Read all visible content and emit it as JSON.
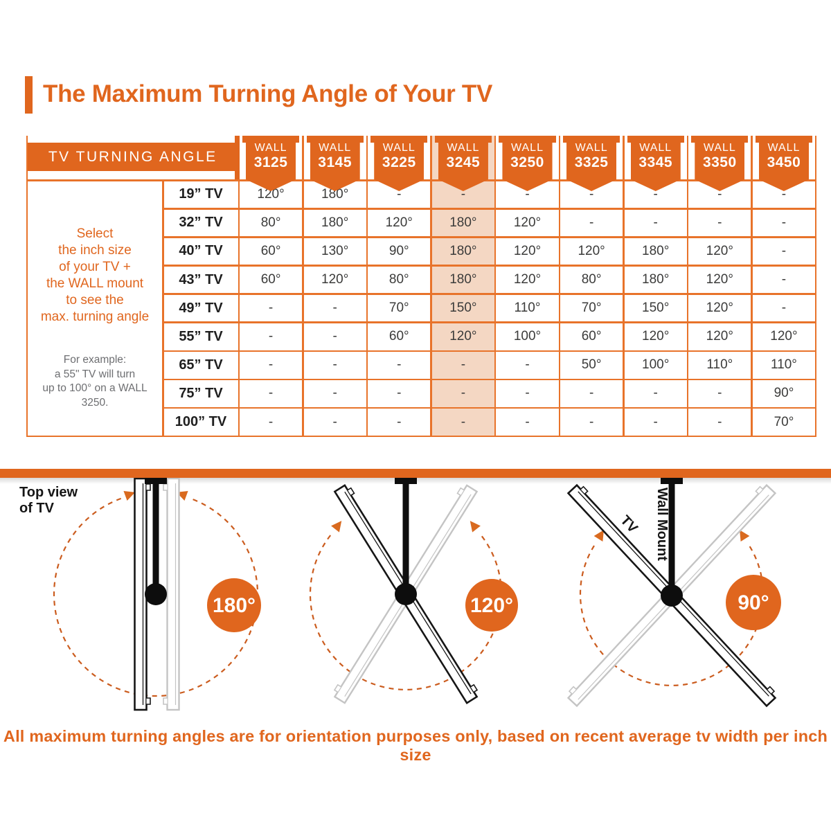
{
  "page": {
    "title": "The Maximum Turning Angle of Your TV",
    "footer": "All maximum turning angles are for orientation purposes only, based on recent average tv width per inch size"
  },
  "colors": {
    "orange": "#E0661E",
    "grid_line": "#E8732A",
    "highlight_peach": "#F4D7C3",
    "value_text": "#3B3B3A",
    "note_gray": "#6D6E71"
  },
  "table": {
    "corner_label": "TV TURNING ANGLE",
    "column_prefix": "WALL",
    "columns": [
      "3125",
      "3145",
      "3225",
      "3245",
      "3250",
      "3325",
      "3345",
      "3350",
      "3450"
    ],
    "highlight_column": "3245",
    "select_note": "Select\nthe inch size\nof your TV +\nthe WALL mount\nto see the\nmax. turning angle",
    "example_note": "For example:\na 55\" TV will turn\nup to 100° on a WALL 3250.",
    "rows": [
      {
        "size": "19” TV",
        "values": [
          "120°",
          "180°",
          "-",
          "-",
          "-",
          "-",
          "-",
          "-",
          "-"
        ]
      },
      {
        "size": "32” TV",
        "values": [
          "80°",
          "180°",
          "120°",
          "180°",
          "120°",
          "-",
          "-",
          "-",
          "-"
        ]
      },
      {
        "size": "40” TV",
        "values": [
          "60°",
          "130°",
          "90°",
          "180°",
          "120°",
          "120°",
          "180°",
          "120°",
          "-"
        ]
      },
      {
        "size": "43” TV",
        "values": [
          "60°",
          "120°",
          "80°",
          "180°",
          "120°",
          "80°",
          "180°",
          "120°",
          "-"
        ]
      },
      {
        "size": "49” TV",
        "values": [
          "-",
          "-",
          "70°",
          "150°",
          "110°",
          "70°",
          "150°",
          "120°",
          "-"
        ]
      },
      {
        "size": "55” TV",
        "values": [
          "-",
          "-",
          "60°",
          "120°",
          "100°",
          "60°",
          "120°",
          "120°",
          "120°"
        ]
      },
      {
        "size": "65” TV",
        "values": [
          "-",
          "-",
          "-",
          "-",
          "-",
          "50°",
          "100°",
          "110°",
          "110°"
        ]
      },
      {
        "size": "75” TV",
        "values": [
          "-",
          "-",
          "-",
          "-",
          "-",
          "-",
          "-",
          "-",
          "90°"
        ]
      },
      {
        "size": "100” TV",
        "values": [
          "-",
          "-",
          "-",
          "-",
          "-",
          "-",
          "-",
          "-",
          "70°"
        ]
      }
    ]
  },
  "diagrams": {
    "top_view_label": "Top view\nof TV",
    "tv_label": "TV",
    "wall_mount_label": "Wall Mount",
    "items": [
      {
        "angle_label": "180°"
      },
      {
        "angle_label": "120°"
      },
      {
        "angle_label": "90°"
      }
    ]
  }
}
